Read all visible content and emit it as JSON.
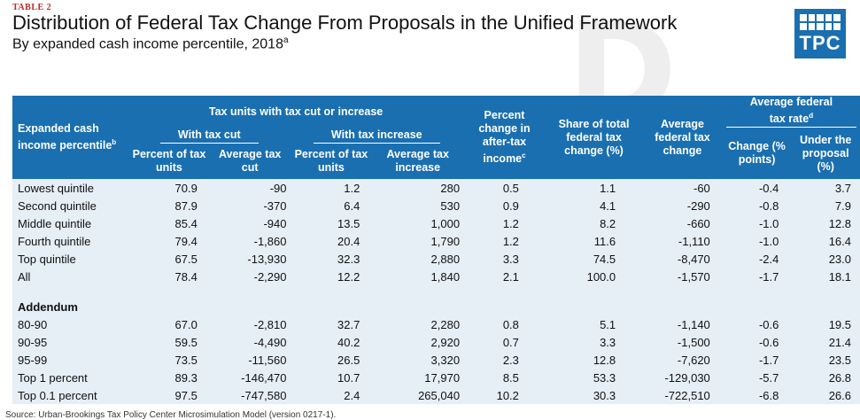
{
  "header": {
    "table_tag": "TABLE 2",
    "title": "Distribution of Federal Tax Change From Proposals in the Unified Framework",
    "subtitle": "By expanded cash income percentile, 2018",
    "subtitle_note": "a",
    "logo_text": "TPC",
    "brand_color": "#1a6fb0",
    "tag_color": "#c0272d"
  },
  "columns": {
    "group_taxunits": "Tax units with tax cut or increase",
    "group_cut": "With tax cut",
    "group_increase": "With tax increase",
    "group_rate": "Average federal tax rate",
    "group_rate_note": "d",
    "row_label": "Expanded cash income percentile",
    "row_label_note": "b",
    "cut_pct": "Percent of tax units",
    "cut_avg": "Average tax cut",
    "inc_pct": "Percent of tax units",
    "inc_avg": "Average tax increase",
    "pct_change": "Percent change in after-tax income",
    "pct_change_note": "c",
    "share": "Share of total federal tax change (%)",
    "avg_change": "Average federal tax change",
    "rate_change": "Change (% points)",
    "rate_under": "Under the proposal (%)"
  },
  "rows": [
    [
      "Lowest quintile",
      "70.9",
      "-90",
      "1.2",
      "280",
      "0.5",
      "1.1",
      "-60",
      "-0.4",
      "3.7"
    ],
    [
      "Second quintile",
      "87.9",
      "-370",
      "6.4",
      "530",
      "0.9",
      "4.1",
      "-290",
      "-0.8",
      "7.9"
    ],
    [
      "Middle quintile",
      "85.4",
      "-940",
      "13.5",
      "1,000",
      "1.2",
      "8.2",
      "-660",
      "-1.0",
      "12.8"
    ],
    [
      "Fourth quintile",
      "79.4",
      "-1,860",
      "20.4",
      "1,790",
      "1.2",
      "11.6",
      "-1,110",
      "-1.0",
      "16.4"
    ],
    [
      "Top quintile",
      "67.5",
      "-13,930",
      "32.3",
      "2,880",
      "3.3",
      "74.5",
      "-8,470",
      "-2.4",
      "23.0"
    ],
    [
      "All",
      "78.4",
      "-2,290",
      "12.2",
      "1,840",
      "2.1",
      "100.0",
      "-1,570",
      "-1.7",
      "18.1"
    ]
  ],
  "addendum_label": "Addendum",
  "addendum_rows": [
    [
      "80-90",
      "67.0",
      "-2,810",
      "32.7",
      "2,280",
      "0.8",
      "5.1",
      "-1,140",
      "-0.6",
      "19.5"
    ],
    [
      "90-95",
      "59.5",
      "-4,490",
      "40.2",
      "2,920",
      "0.7",
      "3.3",
      "-1,500",
      "-0.6",
      "21.4"
    ],
    [
      "95-99",
      "73.5",
      "-11,560",
      "26.5",
      "3,320",
      "2.3",
      "12.8",
      "-7,620",
      "-1.7",
      "23.5"
    ],
    [
      "Top 1 percent",
      "89.3",
      "-146,470",
      "10.7",
      "17,970",
      "8.5",
      "53.3",
      "-129,030",
      "-5.7",
      "26.8"
    ],
    [
      "Top 0.1 percent",
      "97.5",
      "-747,580",
      "2.4",
      "265,040",
      "10.2",
      "30.3",
      "-722,510",
      "-6.8",
      "26.6"
    ]
  ],
  "source": "Source: Urban-Brookings Tax Policy Center Microsimulation Model (version 0217-1)."
}
